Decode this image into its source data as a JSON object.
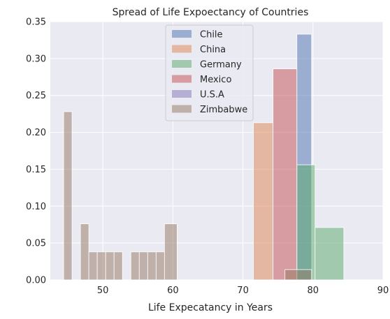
{
  "chart_data": {
    "type": "histogram",
    "title": "Spread of Life Expoectancy of Countries",
    "xlabel": "Life Expecatancy in Years",
    "ylabel": "",
    "xlim": [
      42.5,
      90
    ],
    "ylim": [
      0,
      0.35
    ],
    "xticks": [
      "50",
      "60",
      "70",
      "80",
      "90"
    ],
    "yticks": [
      "0.00",
      "0.05",
      "0.10",
      "0.15",
      "0.20",
      "0.25",
      "0.30",
      "0.35"
    ],
    "grid": true,
    "legend_position": "top-center",
    "series": [
      {
        "name": "Chile",
        "color": "#4c72b0",
        "bins": [
          {
            "x0": 77.7,
            "x1": 79.8,
            "value": 0.333
          }
        ]
      },
      {
        "name": "China",
        "color": "#dd8452",
        "bins": [
          {
            "x0": 71.5,
            "x1": 74.3,
            "value": 0.213
          }
        ]
      },
      {
        "name": "Germany",
        "color": "#55a868",
        "bins": [
          {
            "x0": 77.7,
            "x1": 80.3,
            "value": 0.156
          },
          {
            "x0": 80.3,
            "x1": 84.4,
            "value": 0.071
          }
        ]
      },
      {
        "name": "Mexico",
        "color": "#c44e52",
        "bins": [
          {
            "x0": 74.3,
            "x1": 77.7,
            "value": 0.286
          }
        ]
      },
      {
        "name": "U.S.A",
        "color": "#8172b3",
        "bins": [
          {
            "x0": 77.7,
            "x1": 79.8,
            "value": 0.0
          }
        ]
      },
      {
        "name": "Zimbabwe",
        "color": "#937860",
        "bins": [
          {
            "x0": 44.4,
            "x1": 45.6,
            "value": 0.228
          },
          {
            "x0": 45.6,
            "x1": 46.8,
            "value": 0.0
          },
          {
            "x0": 46.8,
            "x1": 48.0,
            "value": 0.076
          },
          {
            "x0": 48.0,
            "x1": 49.2,
            "value": 0.038
          },
          {
            "x0": 49.2,
            "x1": 50.4,
            "value": 0.038
          },
          {
            "x0": 50.4,
            "x1": 51.6,
            "value": 0.038
          },
          {
            "x0": 51.6,
            "x1": 52.8,
            "value": 0.038
          },
          {
            "x0": 54.0,
            "x1": 55.2,
            "value": 0.038
          },
          {
            "x0": 55.2,
            "x1": 56.4,
            "value": 0.038
          },
          {
            "x0": 56.4,
            "x1": 57.6,
            "value": 0.038
          },
          {
            "x0": 57.6,
            "x1": 58.8,
            "value": 0.038
          },
          {
            "x0": 58.8,
            "x1": 60.6,
            "value": 0.076
          },
          {
            "x0": 76.0,
            "x1": 79.8,
            "value": 0.014
          }
        ]
      }
    ]
  }
}
